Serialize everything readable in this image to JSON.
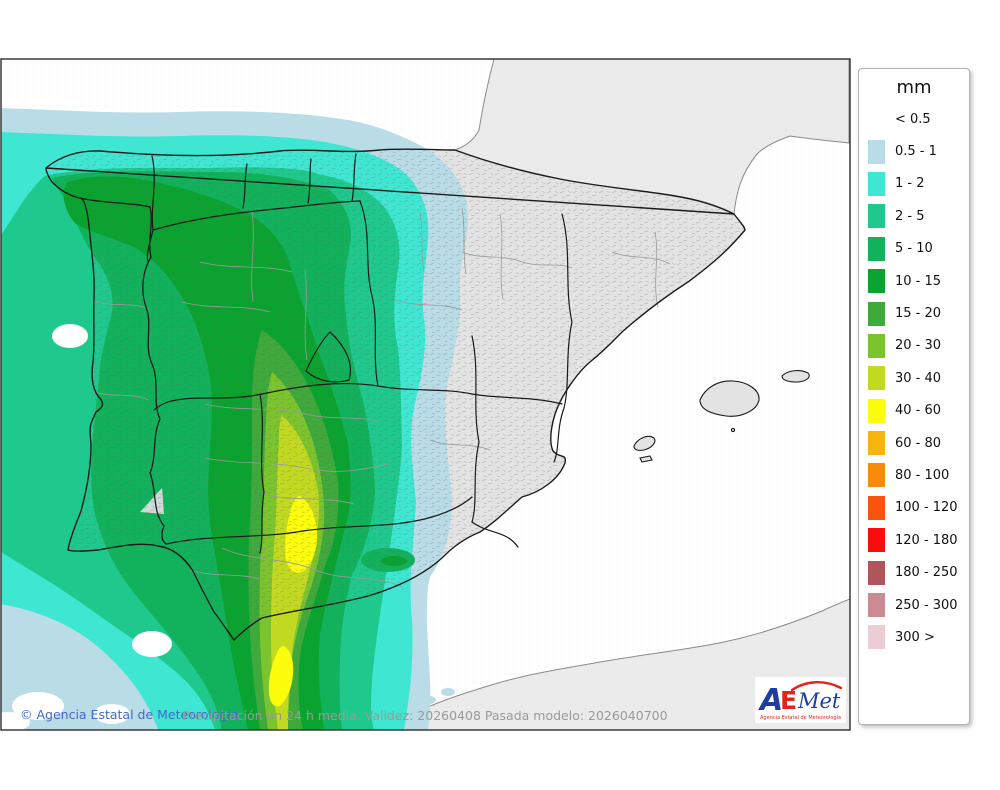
{
  "map": {
    "frame_color": "#3a3a3a",
    "sea_color": "#ffffff",
    "foreign_land_color": "#ebebeb",
    "dry_land_color": "#e3e3e3",
    "coastline_color": "#1b1b1b",
    "community_border_color": "#1a1a1a",
    "province_border_color": "#9a9a9a",
    "foreign_coast_color": "#8a8a8a"
  },
  "legend": {
    "title": "mm",
    "items": [
      {
        "label": "< 0.5",
        "color": null
      },
      {
        "label": "0.5 - 1",
        "color": "#b9dce6"
      },
      {
        "label": "1 - 2",
        "color": "#3fe7d2"
      },
      {
        "label": "2 - 5",
        "color": "#1fc98e"
      },
      {
        "label": "5 - 10",
        "color": "#12b25c"
      },
      {
        "label": "10 - 15",
        "color": "#0ba32f"
      },
      {
        "label": "15 - 20",
        "color": "#3fa93c"
      },
      {
        "label": "20 - 30",
        "color": "#7cc42d"
      },
      {
        "label": "30 - 40",
        "color": "#c2d922"
      },
      {
        "label": "40 - 60",
        "color": "#fcfc0d"
      },
      {
        "label": "60 - 80",
        "color": "#f6b40e"
      },
      {
        "label": "80 - 100",
        "color": "#f98b0b"
      },
      {
        "label": "100 - 120",
        "color": "#f9530e"
      },
      {
        "label": "120 - 180",
        "color": "#fa0c0c"
      },
      {
        "label": "180 - 250",
        "color": "#b2545b"
      },
      {
        "label": "250 - 300",
        "color": "#ca8b93"
      },
      {
        "label": "300 >",
        "color": "#eaced3"
      }
    ]
  },
  "footer": {
    "copyright": "© Agencia Estatal de Meteorología",
    "copyright_color": "#4468cf",
    "caption": "Precipitación en 24 h media. Validez: 20260408 Pasada modelo: 2026040700",
    "caption_color": "#9a9a9a"
  },
  "logo": {
    "part_a": "A",
    "part_e": "E",
    "part_met": "Met",
    "subtitle": "Agencia Estatal de Meteorología",
    "blue": "#1c3f9f",
    "red": "#e3241c"
  }
}
